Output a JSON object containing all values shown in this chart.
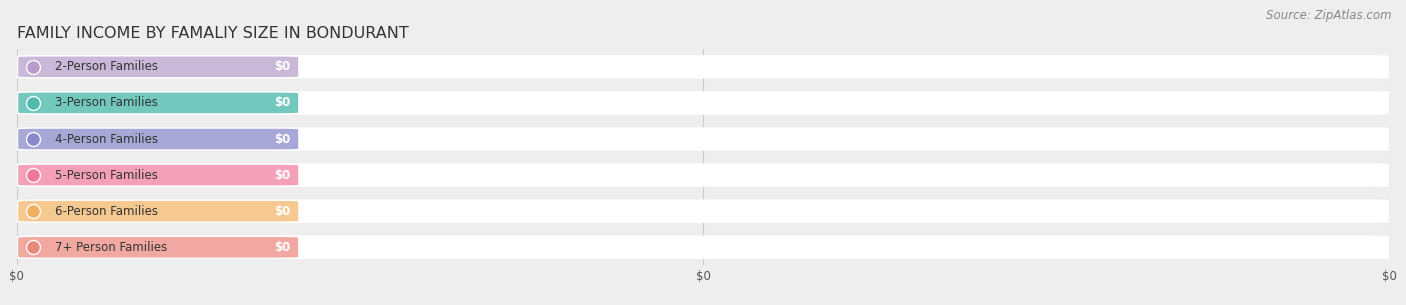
{
  "title": "FAMILY INCOME BY FAMALIY SIZE IN BONDURANT",
  "source_text": "Source: ZipAtlas.com",
  "categories": [
    "2-Person Families",
    "3-Person Families",
    "4-Person Families",
    "5-Person Families",
    "6-Person Families",
    "7+ Person Families"
  ],
  "values": [
    0,
    0,
    0,
    0,
    0,
    0
  ],
  "bar_colors": [
    "#c9b8d8",
    "#72c8bc",
    "#a8a8d8",
    "#f4a0b8",
    "#f5c990",
    "#f0a8a0"
  ],
  "dot_colors": [
    "#b89ccc",
    "#50b8ac",
    "#8888cc",
    "#f07898",
    "#f0b060",
    "#e88878"
  ],
  "value_labels": [
    "$0",
    "$0",
    "$0",
    "$0",
    "$0",
    "$0"
  ],
  "x_tick_labels": [
    "$0",
    "$0",
    "$0"
  ],
  "x_tick_positions": [
    0.0,
    0.5,
    1.0
  ],
  "background_color": "#eeeeee",
  "bar_track_color": "#ffffff",
  "title_fontsize": 11.5,
  "label_fontsize": 8.5,
  "source_fontsize": 8.5
}
